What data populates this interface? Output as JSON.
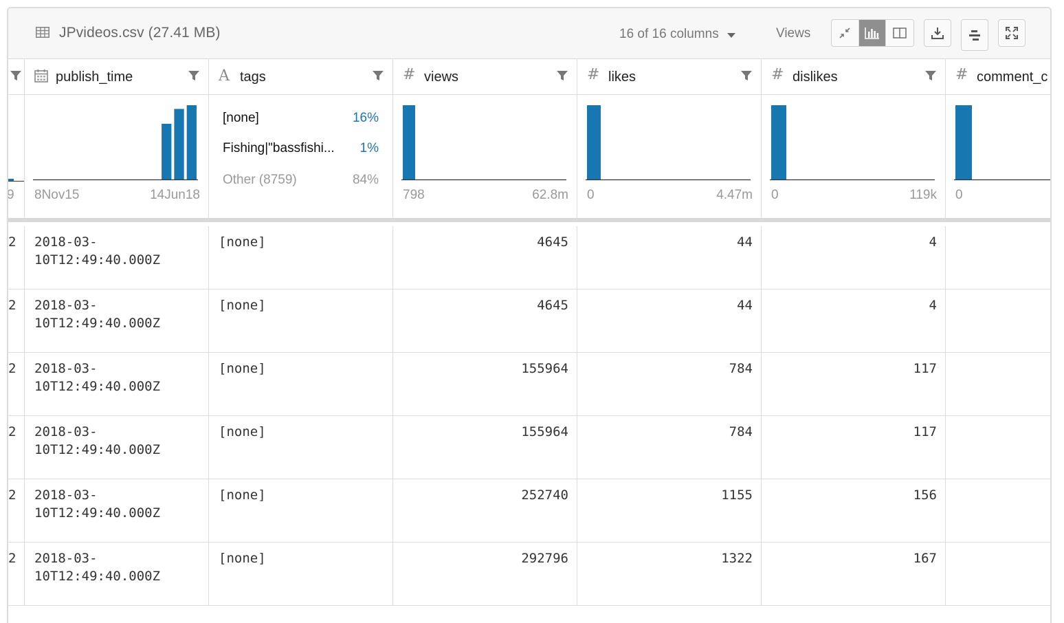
{
  "header": {
    "file_title": "JPvideos.csv (27.41 MB)",
    "columns_select": "16 of 16 columns",
    "views_label": "Views",
    "icons": {
      "file": "table-icon",
      "compact": "compress-icon",
      "histogram": "bar-chart-icon",
      "split": "columns-icon",
      "download": "download-icon",
      "settings": "sliders-icon",
      "fullscreen": "expand-icon"
    }
  },
  "columns": [
    {
      "name": "",
      "type": "date"
    },
    {
      "name": "publish_time",
      "type": "date"
    },
    {
      "name": "tags",
      "type": "text"
    },
    {
      "name": "views",
      "type": "number"
    },
    {
      "name": "likes",
      "type": "number"
    },
    {
      "name": "dislikes",
      "type": "number"
    },
    {
      "name": "comment_c",
      "type": "number"
    }
  ],
  "summary": {
    "edge_min": "9",
    "publish_time": {
      "min": "8Nov15",
      "max": "14Jun18",
      "bars": [
        0,
        0,
        0,
        0,
        0,
        0,
        0,
        0,
        0,
        0,
        0.75,
        0.95,
        1.0
      ]
    },
    "tags": {
      "categories": [
        {
          "label": "[none]",
          "pct": "16%"
        },
        {
          "label": "Fishing|\"bassfishi...",
          "pct": "1%"
        }
      ],
      "other": {
        "label": "Other (8759)",
        "pct": "84%"
      }
    },
    "views": {
      "min": "798",
      "max": "62.8m"
    },
    "likes": {
      "min": "0",
      "max": "4.47m"
    },
    "dislikes": {
      "min": "0",
      "max": "119k"
    },
    "comment_c": {
      "min": "0"
    }
  },
  "rows": [
    {
      "edge": "2",
      "publish_time_1": "2018-03-",
      "publish_time_2": "10T12:49:40.000Z",
      "tags": "[none]",
      "views": "4645",
      "likes": "44",
      "dislikes": "4"
    },
    {
      "edge": "2",
      "publish_time_1": "2018-03-",
      "publish_time_2": "10T12:49:40.000Z",
      "tags": "[none]",
      "views": "4645",
      "likes": "44",
      "dislikes": "4"
    },
    {
      "edge": "2",
      "publish_time_1": "2018-03-",
      "publish_time_2": "10T12:49:40.000Z",
      "tags": "[none]",
      "views": "155964",
      "likes": "784",
      "dislikes": "117"
    },
    {
      "edge": "2",
      "publish_time_1": "2018-03-",
      "publish_time_2": "10T12:49:40.000Z",
      "tags": "[none]",
      "views": "155964",
      "likes": "784",
      "dislikes": "117"
    },
    {
      "edge": "2",
      "publish_time_1": "2018-03-",
      "publish_time_2": "10T12:49:40.000Z",
      "tags": "[none]",
      "views": "252740",
      "likes": "1155",
      "dislikes": "156"
    },
    {
      "edge": "2",
      "publish_time_1": "2018-03-",
      "publish_time_2": "10T12:49:40.000Z",
      "tags": "[none]",
      "views": "292796",
      "likes": "1322",
      "dislikes": "167"
    }
  ],
  "colors": {
    "bar": "#1777b0",
    "pct": "#1777b0"
  }
}
